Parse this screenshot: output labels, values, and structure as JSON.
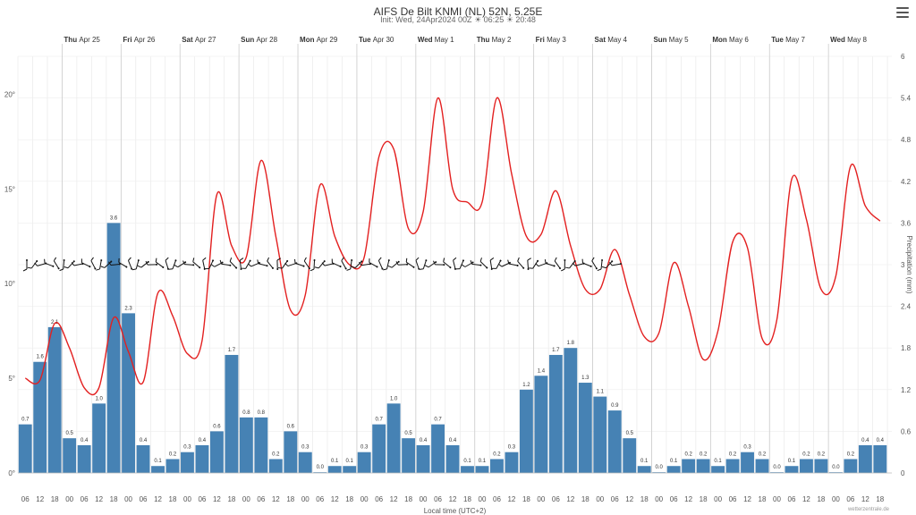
{
  "header": {
    "title": "AIFS De Bilt KNMI (NL) 52N, 5.25E",
    "subtitle_init": "Init: Wed, 24Apr2024 00Z",
    "sunrise": "06:25",
    "sunset": "20:48"
  },
  "credit": "wetterzentrale.de",
  "colors": {
    "temperature_line": "#e32020",
    "precip_bars": "#4682b4",
    "wind_barbs": "#111111",
    "grid": "#e6e6e6"
  },
  "chart_data": {
    "type": "bar",
    "xlabel": "Local time (UTC+2)",
    "ylabel_right": "Precipitation (mm)",
    "ylim_left": [
      0,
      22
    ],
    "ylim_right": [
      0,
      6
    ],
    "left_ticks": [
      "0°",
      "5°",
      "10°",
      "15°",
      "20°"
    ],
    "right_ticks": [
      "0",
      "0.6",
      "1.2",
      "1.8",
      "2.4",
      "3",
      "3.6",
      "4.2",
      "4.8",
      "5.4",
      "6"
    ],
    "days": [
      {
        "dow": "Thu",
        "date": "Apr 25"
      },
      {
        "dow": "Fri",
        "date": "Apr 26"
      },
      {
        "dow": "Sat",
        "date": "Apr 27"
      },
      {
        "dow": "Sun",
        "date": "Apr 28"
      },
      {
        "dow": "Mon",
        "date": "Apr 29"
      },
      {
        "dow": "Tue",
        "date": "Apr 30"
      },
      {
        "dow": "Wed",
        "date": "May 1"
      },
      {
        "dow": "Thu",
        "date": "May 2"
      },
      {
        "dow": "Fri",
        "date": "May 3"
      },
      {
        "dow": "Sat",
        "date": "May 4"
      },
      {
        "dow": "Sun",
        "date": "May 5"
      },
      {
        "dow": "Mon",
        "date": "May 6"
      },
      {
        "dow": "Tue",
        "date": "May 7"
      },
      {
        "dow": "Wed",
        "date": "May 8"
      }
    ],
    "x_ticks": [
      "06",
      "12",
      "18",
      "00",
      "06",
      "12",
      "18",
      "00",
      "06",
      "12",
      "18",
      "00",
      "06",
      "12",
      "18",
      "00",
      "06",
      "12",
      "18",
      "00",
      "06",
      "12",
      "18",
      "00",
      "06",
      "12",
      "18",
      "00",
      "06",
      "12",
      "18",
      "00",
      "06",
      "12",
      "18",
      "00",
      "06",
      "12",
      "18",
      "00",
      "06",
      "12",
      "18",
      "00",
      "06",
      "12",
      "18",
      "00",
      "06",
      "12",
      "18",
      "00",
      "06",
      "12",
      "18",
      "00",
      "06",
      "12",
      "18"
    ],
    "precipitation": {
      "name": "Precipitation",
      "values": [
        0.7,
        1.6,
        2.1,
        0.5,
        0.4,
        1.0,
        3.6,
        2.3,
        0.4,
        0.1,
        0.2,
        0.3,
        0.4,
        0.6,
        1.7,
        0.8,
        0.8,
        0.2,
        0.6,
        0.3,
        0.0,
        0.1,
        0.1,
        0.3,
        0.7,
        1.0,
        0.5,
        0.4,
        0.7,
        0.4,
        0.1,
        0.1,
        0.2,
        0.3,
        1.2,
        1.4,
        1.7,
        1.8,
        1.3,
        1.1,
        0.9,
        0.5,
        0.1,
        0.0,
        0.1,
        0.2,
        0.2,
        0.1,
        0.2,
        0.3,
        0.2,
        0.0,
        0.1,
        0.2,
        0.2,
        0.0,
        0.2,
        0.4,
        0.4
      ]
    },
    "temperature": {
      "name": "Temperature",
      "values": [
        5.0,
        4.9,
        7.9,
        6.6,
        4.5,
        4.5,
        8.2,
        6.4,
        4.8,
        9.5,
        8.3,
        6.3,
        7.0,
        14.7,
        12.0,
        11.4,
        16.5,
        12.5,
        8.6,
        9.4,
        15.2,
        12.5,
        11.0,
        11.4,
        16.7,
        17.1,
        12.9,
        13.8,
        19.8,
        15.0,
        14.3,
        14.3,
        19.8,
        15.8,
        12.5,
        12.6,
        14.9,
        12.0,
        9.7,
        9.7,
        11.8,
        9.4,
        7.2,
        7.4,
        11.1,
        8.8,
        6.0,
        7.5,
        12.2,
        11.9,
        7.1,
        8.1,
        15.5,
        13.4,
        9.7,
        10.4,
        16.2,
        14.1,
        13.3
      ]
    }
  }
}
